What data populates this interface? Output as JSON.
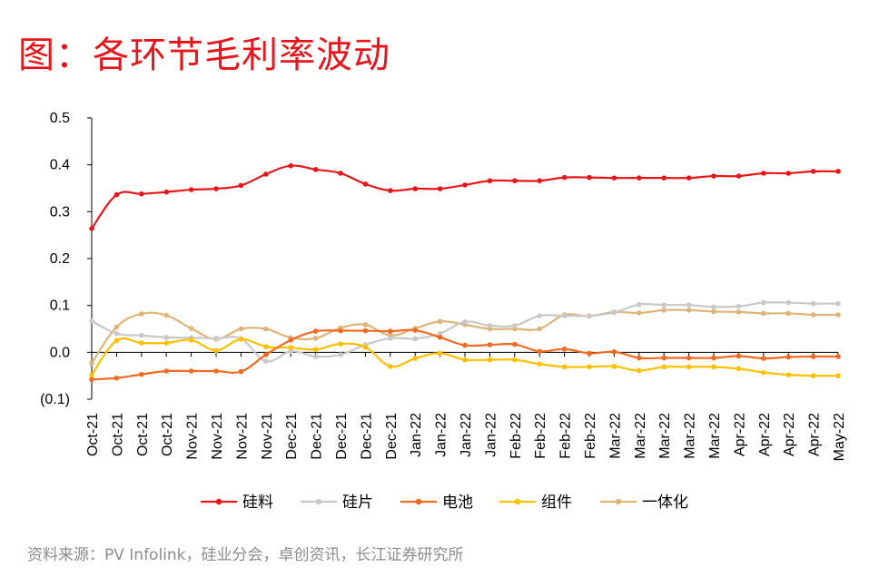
{
  "title": "图：各环节毛利率波动",
  "source": "资料来源：PV Infolink，硅业分会，卓创资讯，长江证券研究所",
  "chart_data": {
    "type": "line",
    "title": "图：各环节毛利率波动",
    "xlabel": "",
    "ylabel": "",
    "ylim": [
      -0.1,
      0.5
    ],
    "yticks": [
      0.5,
      0.4,
      0.3,
      0.2,
      0.1,
      0.0,
      -0.1
    ],
    "ytick_labels": [
      "0.5",
      "0.4",
      "0.3",
      "0.2",
      "0.1",
      "0.0",
      "(0.1)"
    ],
    "grid": false,
    "legend_position": "bottom",
    "categories": [
      "Oct-21",
      "Oct-21",
      "Oct-21",
      "Oct-21",
      "Nov-21",
      "Nov-21",
      "Nov-21",
      "Nov-21",
      "Dec-21",
      "Dec-21",
      "Dec-21",
      "Dec-21",
      "Dec-21",
      "Jan-22",
      "Jan-22",
      "Jan-22",
      "Jan-22",
      "Feb-22",
      "Feb-22",
      "Feb-22",
      "Feb-22",
      "Mar-22",
      "Mar-22",
      "Mar-22",
      "Mar-22",
      "Mar-22",
      "Apr-22",
      "Apr-22",
      "Apr-22",
      "Apr-22",
      "May-22"
    ],
    "series": [
      {
        "name": "硅料",
        "color": "#e8161b",
        "values": [
          0.264,
          0.336,
          0.338,
          0.342,
          0.347,
          0.349,
          0.356,
          0.38,
          0.398,
          0.39,
          0.382,
          0.359,
          0.345,
          0.349,
          0.349,
          0.357,
          0.366,
          0.366,
          0.366,
          0.373,
          0.373,
          0.372,
          0.372,
          0.372,
          0.372,
          0.376,
          0.376,
          0.382,
          0.382,
          0.386,
          0.386
        ]
      },
      {
        "name": "硅片",
        "color": "#c8c8c8",
        "values": [
          0.067,
          0.04,
          0.036,
          0.032,
          0.031,
          0.03,
          0.029,
          -0.019,
          0.002,
          -0.009,
          -0.005,
          0.016,
          0.03,
          0.029,
          0.04,
          0.065,
          0.057,
          0.057,
          0.078,
          0.078,
          0.078,
          0.085,
          0.102,
          0.101,
          0.101,
          0.097,
          0.098,
          0.106,
          0.106,
          0.104,
          0.104
        ]
      },
      {
        "name": "电池",
        "color": "#f26a21",
        "values": [
          -0.058,
          -0.055,
          -0.047,
          -0.04,
          -0.04,
          -0.04,
          -0.041,
          -0.005,
          0.026,
          0.045,
          0.046,
          0.046,
          0.045,
          0.047,
          0.032,
          0.015,
          0.016,
          0.017,
          0.002,
          0.007,
          -0.002,
          0.001,
          -0.012,
          -0.012,
          -0.012,
          -0.012,
          -0.008,
          -0.013,
          -0.01,
          -0.009,
          -0.009
        ]
      },
      {
        "name": "组件",
        "color": "#ffc000",
        "values": [
          -0.048,
          0.025,
          0.02,
          0.02,
          0.026,
          0.004,
          0.028,
          0.012,
          0.01,
          0.006,
          0.018,
          0.011,
          -0.03,
          -0.013,
          -0.002,
          -0.016,
          -0.016,
          -0.016,
          -0.025,
          -0.031,
          -0.031,
          -0.03,
          -0.039,
          -0.031,
          -0.031,
          -0.031,
          -0.035,
          -0.043,
          -0.048,
          -0.05,
          -0.05
        ]
      },
      {
        "name": "一体化",
        "color": "#deb578",
        "values": [
          -0.023,
          0.054,
          0.082,
          0.079,
          0.051,
          0.028,
          0.05,
          0.05,
          0.031,
          0.03,
          0.052,
          0.059,
          0.036,
          0.051,
          0.066,
          0.059,
          0.05,
          0.05,
          0.05,
          0.08,
          0.077,
          0.086,
          0.084,
          0.09,
          0.09,
          0.087,
          0.086,
          0.083,
          0.083,
          0.08,
          0.08
        ]
      }
    ]
  }
}
